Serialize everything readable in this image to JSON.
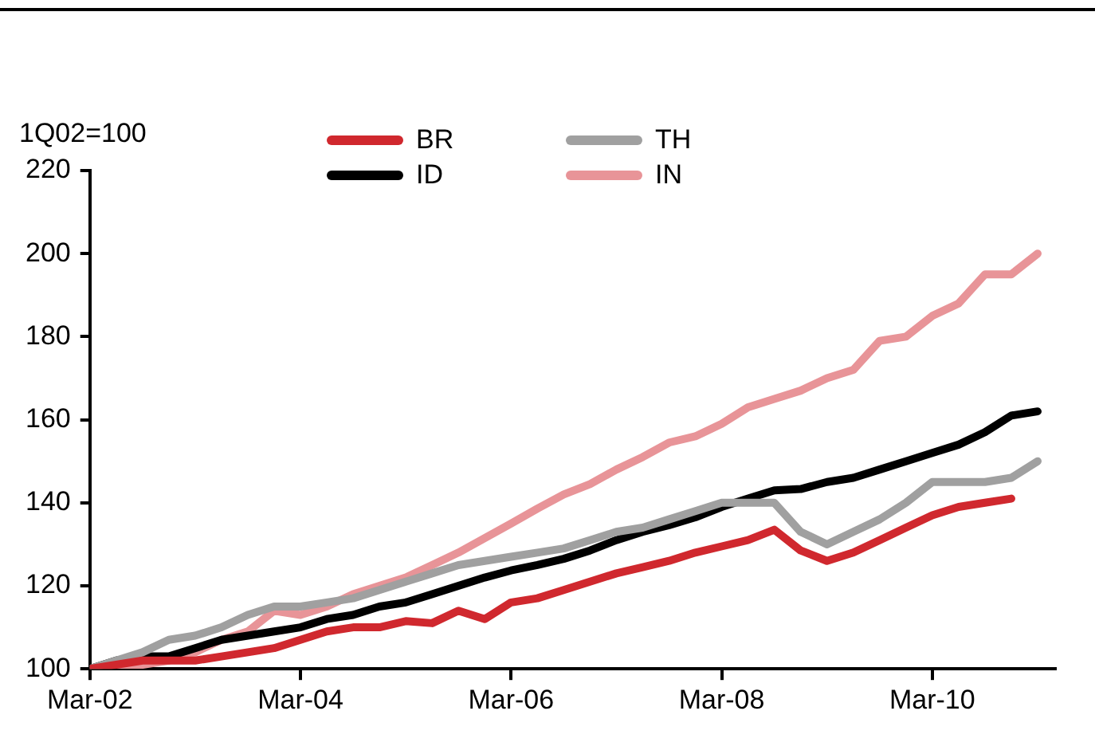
{
  "chart_data": {
    "type": "line",
    "ylabel": "1Q02=100",
    "x": [
      "2002-03",
      "2002-06",
      "2002-09",
      "2002-12",
      "2003-03",
      "2003-06",
      "2003-09",
      "2003-12",
      "2004-03",
      "2004-06",
      "2004-09",
      "2004-12",
      "2005-03",
      "2005-06",
      "2005-09",
      "2005-12",
      "2006-03",
      "2006-06",
      "2006-09",
      "2006-12",
      "2007-03",
      "2007-06",
      "2007-09",
      "2007-12",
      "2008-03",
      "2008-06",
      "2008-09",
      "2008-12",
      "2009-03",
      "2009-06",
      "2009-09",
      "2009-12",
      "2010-03",
      "2010-06",
      "2010-09",
      "2010-12",
      "2011-03"
    ],
    "xlim": [
      "2002-03",
      "2011-05"
    ],
    "xticks": [
      {
        "value": "2002-03",
        "label": "Mar-02"
      },
      {
        "value": "2004-03",
        "label": "Mar-04"
      },
      {
        "value": "2006-03",
        "label": "Mar-06"
      },
      {
        "value": "2008-03",
        "label": "Mar-08"
      },
      {
        "value": "2010-03",
        "label": "Mar-10"
      }
    ],
    "ylim": [
      100,
      220
    ],
    "yticks": [
      100,
      120,
      140,
      160,
      180,
      200,
      220
    ],
    "grid": false,
    "legend": "top",
    "marker": "none",
    "line_style": "solid",
    "series": [
      {
        "name": "BR",
        "color": "#d0282e",
        "values": [
          100,
          101,
          102,
          102,
          102,
          103,
          104,
          105,
          107,
          109,
          110,
          110,
          111.5,
          111,
          114,
          112,
          116,
          117,
          119,
          121,
          123,
          124.5,
          126,
          128,
          129.5,
          131,
          133.5,
          128.5,
          126,
          128,
          131,
          134,
          137,
          139,
          140,
          141,
          null
        ]
      },
      {
        "name": "TH",
        "color": "#a0a0a0",
        "values": [
          100,
          102,
          104,
          107,
          108,
          110,
          113,
          115,
          115,
          116,
          117,
          119,
          121,
          123,
          125,
          126,
          127,
          128,
          129,
          131,
          133,
          134,
          136,
          138,
          140,
          140,
          140,
          133,
          130,
          133,
          136,
          140,
          145,
          145,
          145,
          146,
          150
        ]
      },
      {
        "name": "ID",
        "color": "#000000",
        "values": [
          100,
          102,
          103,
          103,
          105,
          107,
          108,
          109,
          110,
          112,
          113,
          115,
          116,
          118,
          120,
          122,
          123.7,
          125,
          126.5,
          128.5,
          131,
          133,
          134.6,
          136.5,
          139,
          141,
          143,
          143.3,
          145,
          146,
          148,
          150,
          152,
          154,
          157,
          161,
          162
        ]
      },
      {
        "name": "IN",
        "color": "#e89498",
        "values": [
          100,
          101,
          101,
          102,
          104,
          107,
          109,
          114,
          113,
          115,
          118,
          120,
          122,
          125,
          128,
          131.5,
          135,
          138.6,
          142,
          144.5,
          148,
          151,
          154.5,
          156,
          159,
          163,
          165,
          167,
          170,
          172,
          179,
          180,
          185,
          188,
          195,
          195,
          200
        ]
      }
    ]
  }
}
